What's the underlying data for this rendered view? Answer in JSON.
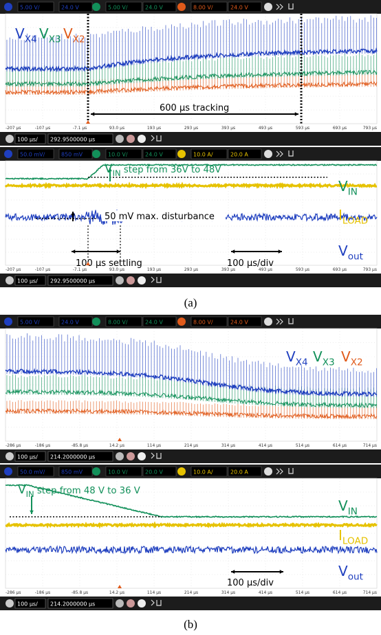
{
  "figures": [
    {
      "caption": "(a)",
      "panels": [
        {
          "channels": [
            {
              "scale": "5.00 V/",
              "offset": "24.0 V"
            },
            {
              "scale": "5.00 V/",
              "offset": "24.0 V"
            },
            {
              "scale": "8.00 V/",
              "offset": "24.0 V"
            }
          ],
          "time_labels": [
            "-207 µs",
            "-107 µs",
            "-7.1 µs",
            "93.0 µs",
            "193 µs",
            "293 µs",
            "393 µs",
            "493 µs",
            "593 µs",
            "693 µs",
            "793 µs"
          ],
          "timebase": "100 µs/",
          "position": "292.9500000 µs",
          "trace_labels": [
            {
              "text": "V",
              "sub": "X4"
            },
            {
              "text": "V",
              "sub": "X3"
            },
            {
              "text": "V",
              "sub": "X2"
            }
          ],
          "notes": [
            "600 µs tracking"
          ]
        },
        {
          "channels": [
            {
              "scale": "50.0 mV/",
              "offset": "850 mV"
            },
            {
              "scale": "10.0 V/",
              "offset": "24.0 V"
            },
            {
              "scale": "10.0 A/",
              "offset": "20.0 A"
            }
          ],
          "time_labels": [
            "-207 µs",
            "-107 µs",
            "-7.1 µs",
            "93.0 µs",
            "193 µs",
            "293 µs",
            "393 µs",
            "493 µs",
            "593 µs",
            "693 µs",
            "793 µs"
          ],
          "timebase": "100 µs/",
          "position": "292.9500000 µs",
          "trace_labels": [
            {
              "text": "V",
              "sub": "IN",
              "tail": " step from 36V to 48V"
            },
            {
              "text": "V",
              "sub": "IN"
            },
            {
              "text": "I",
              "sub": "LOAD"
            },
            {
              "text": "V",
              "sub": "out"
            }
          ],
          "notes": [
            "50 mV max. disturbance",
            "100 µs settling",
            "100 µs/div"
          ]
        }
      ]
    },
    {
      "caption": "(b)",
      "panels": [
        {
          "channels": [
            {
              "scale": "5.00 V/",
              "offset": "24.0 V"
            },
            {
              "scale": "8.00 V/",
              "offset": "24.0 V"
            },
            {
              "scale": "8.00 V/",
              "offset": "24.0 V"
            }
          ],
          "time_labels": [
            "-286 µs",
            "-186 µs",
            "-85.8 µs",
            "14.2 µs",
            "114 µs",
            "214 µs",
            "314 µs",
            "414 µs",
            "514 µs",
            "614 µs",
            "714 µs"
          ],
          "timebase": "100 µs/",
          "position": "214.2000000 µs",
          "trace_labels": [
            {
              "text": "V",
              "sub": "X4"
            },
            {
              "text": "V",
              "sub": "X3"
            },
            {
              "text": "V",
              "sub": "X2"
            }
          ],
          "notes": []
        },
        {
          "channels": [
            {
              "scale": "50.0 mV/",
              "offset": "850 mV"
            },
            {
              "scale": "10.0 V/",
              "offset": "20.0 V"
            },
            {
              "scale": "10.0 A/",
              "offset": "20.0 A"
            }
          ],
          "time_labels": [
            "-286 µs",
            "-186 µs",
            "-85.8 µs",
            "14.2 µs",
            "114 µs",
            "214 µs",
            "314 µs",
            "414 µs",
            "514 µs",
            "614 µs",
            "714 µs"
          ],
          "timebase": "100 µs/",
          "position": "214.2000000 µs",
          "trace_labels": [
            {
              "text": "V",
              "sub": "IN",
              "tail": " step from 48 V to 36 V"
            },
            {
              "text": "V",
              "sub": "IN"
            },
            {
              "text": "I",
              "sub": "LOAD"
            },
            {
              "text": "V",
              "sub": "out"
            }
          ],
          "notes": [
            "100 µs/div"
          ]
        }
      ]
    }
  ]
}
